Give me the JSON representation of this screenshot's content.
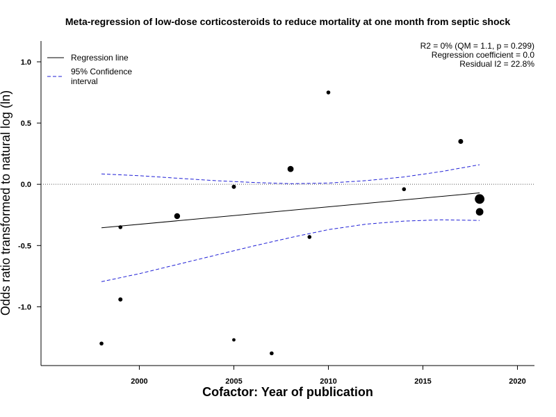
{
  "chart_data": {
    "type": "scatter",
    "title": "Meta-regression of  low-dose corticosteroids to reduce mortality at one month from septic shock",
    "xlabel": "Cofactor:  Year of publication",
    "ylabel": "Odds ratio transformed to natural log (ln)",
    "xlim": [
      1994.8,
      2020.9
    ],
    "ylim": [
      -1.48,
      1.17
    ],
    "xticks": [
      2000,
      2005,
      2010,
      2015,
      2020
    ],
    "xtick_labels": [
      "2000",
      "2005",
      "2010",
      "2015",
      "2020"
    ],
    "yticks": [
      1.0,
      0.5,
      0.0,
      -0.5,
      -1.0
    ],
    "ytick_labels": [
      "1.0",
      "0.5",
      "0.0",
      "-0.5",
      "-1.0"
    ],
    "reference_line_y": 0,
    "legend": [
      {
        "label_lines": [
          "Regression line"
        ],
        "style": "solid",
        "color": "#000000"
      },
      {
        "label_lines": [
          "95% Confidence",
          "interval"
        ],
        "style": "dashed",
        "color": "#1f1fd6"
      }
    ],
    "legend_position": "top-left",
    "stats": [
      "R2 = 0% (QM = 1.1, p = 0.299)",
      "Regression coefficient = 0.0",
      "Residual I2 = 22.8%"
    ],
    "stats_position": "top-right",
    "points": [
      {
        "x": 1998,
        "y": -1.3,
        "weight": 1.6
      },
      {
        "x": 1999,
        "y": -0.35,
        "weight": 1.6
      },
      {
        "x": 1999,
        "y": -0.94,
        "weight": 1.8
      },
      {
        "x": 2002,
        "y": -0.26,
        "weight": 3.5
      },
      {
        "x": 2005,
        "y": -0.02,
        "weight": 1.8
      },
      {
        "x": 2005,
        "y": -1.27,
        "weight": 1.1
      },
      {
        "x": 2007,
        "y": -1.38,
        "weight": 1.6
      },
      {
        "x": 2008,
        "y": 0.125,
        "weight": 3.8
      },
      {
        "x": 2009,
        "y": -0.43,
        "weight": 1.6
      },
      {
        "x": 2010,
        "y": 0.75,
        "weight": 1.6
      },
      {
        "x": 2014,
        "y": -0.04,
        "weight": 1.6
      },
      {
        "x": 2017,
        "y": 0.35,
        "weight": 2.4
      },
      {
        "x": 2018,
        "y": -0.12,
        "weight": 9.5
      },
      {
        "x": 2018,
        "y": -0.225,
        "weight": 5.8
      }
    ],
    "regression_line": [
      {
        "x": 1998,
        "y": -0.355
      },
      {
        "x": 2018,
        "y": -0.07
      }
    ],
    "ci_upper": [
      {
        "x": 1998,
        "y": 0.085
      },
      {
        "x": 2000,
        "y": 0.07
      },
      {
        "x": 2002,
        "y": 0.05
      },
      {
        "x": 2004,
        "y": 0.03
      },
      {
        "x": 2006,
        "y": 0.015
      },
      {
        "x": 2008,
        "y": 0.005
      },
      {
        "x": 2010,
        "y": 0.01
      },
      {
        "x": 2012,
        "y": 0.03
      },
      {
        "x": 2014,
        "y": 0.06
      },
      {
        "x": 2016,
        "y": 0.105
      },
      {
        "x": 2018,
        "y": 0.16
      }
    ],
    "ci_lower": [
      {
        "x": 1998,
        "y": -0.795
      },
      {
        "x": 2000,
        "y": -0.73
      },
      {
        "x": 2002,
        "y": -0.655
      },
      {
        "x": 2004,
        "y": -0.58
      },
      {
        "x": 2006,
        "y": -0.505
      },
      {
        "x": 2008,
        "y": -0.435
      },
      {
        "x": 2010,
        "y": -0.37
      },
      {
        "x": 2012,
        "y": -0.325
      },
      {
        "x": 2014,
        "y": -0.3
      },
      {
        "x": 2016,
        "y": -0.29
      },
      {
        "x": 2018,
        "y": -0.295
      }
    ],
    "colors": {
      "axis": "#000000",
      "ci": "#1f1fd6",
      "points": "#000000",
      "reference": "#555555"
    }
  }
}
